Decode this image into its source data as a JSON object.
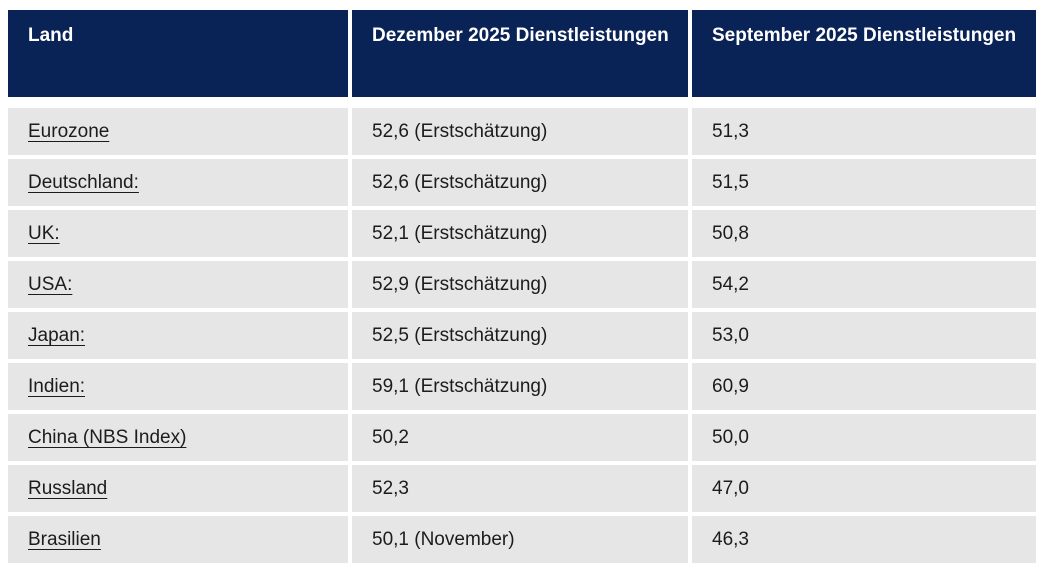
{
  "colors": {
    "header_bg": "#0a2357",
    "header_text": "#ffffff",
    "row_bg": "#e6e6e6",
    "body_text": "#1c1c1c",
    "page_bg": "#ffffff"
  },
  "table": {
    "columns": [
      {
        "label": "Land"
      },
      {
        "label": "Dezember 2025 Dienstleistungen"
      },
      {
        "label": "September 2025 Dienstleistungen"
      }
    ],
    "rows": [
      {
        "land": "Eurozone",
        "dezember": "52,6 (Erstschätzung)",
        "september": "51,3"
      },
      {
        "land": "Deutschland:",
        "dezember": "52,6 (Erstschätzung)",
        "september": "51,5"
      },
      {
        "land": "UK:",
        "dezember": "52,1 (Erstschätzung)",
        "september": "50,8"
      },
      {
        "land": "USA:",
        "dezember": "52,9 (Erstschätzung)",
        "september": "54,2"
      },
      {
        "land": "Japan:",
        "dezember": "52,5 (Erstschätzung)",
        "september": "53,0"
      },
      {
        "land": "Indien:",
        "dezember": "59,1 (Erstschätzung)",
        "september": "60,9"
      },
      {
        "land": "China (NBS Index)",
        "dezember": "50,2",
        "september": "50,0"
      },
      {
        "land": "Russland",
        "dezember": "52,3",
        "september": "47,0"
      },
      {
        "land": "Brasilien",
        "dezember": "50,1 (November)",
        "september": "46,3"
      }
    ]
  },
  "chart_data": {
    "type": "table",
    "title": "",
    "columns": [
      "Land",
      "Dezember 2025 Dienstleistungen",
      "September 2025 Dienstleistungen"
    ],
    "rows": [
      [
        "Eurozone",
        "52,6 (Erstschätzung)",
        "51,3"
      ],
      [
        "Deutschland:",
        "52,6 (Erstschätzung)",
        "51,5"
      ],
      [
        "UK:",
        "52,1 (Erstschätzung)",
        "50,8"
      ],
      [
        "USA:",
        "52,9 (Erstschätzung)",
        "54,2"
      ],
      [
        "Japan:",
        "52,5 (Erstschätzung)",
        "53,0"
      ],
      [
        "Indien:",
        "59,1 (Erstschätzung)",
        "60,9"
      ],
      [
        "China (NBS Index)",
        "50,2",
        "50,0"
      ],
      [
        "Russland",
        "52,3",
        "47,0"
      ],
      [
        "Brasilien",
        "50,1 (November)",
        "46,3"
      ]
    ]
  }
}
